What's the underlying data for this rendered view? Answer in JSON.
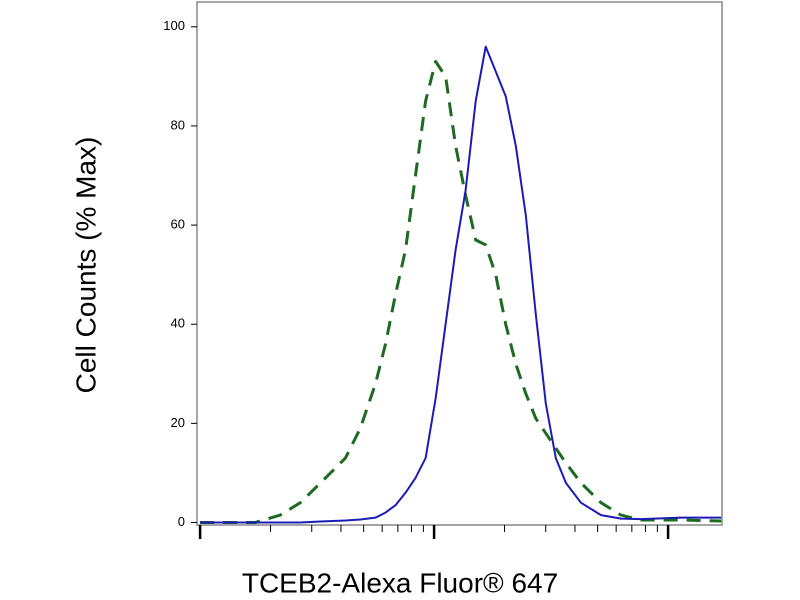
{
  "chart_data": {
    "type": "line",
    "xlabel": "TCEB2-Alexa Fluor® 647",
    "ylabel": "Cell Counts (% Max)",
    "x_log": true,
    "xlim": [
      97,
      17000
    ],
    "xticks": [
      100,
      200,
      300,
      400,
      500,
      600,
      700,
      800,
      900,
      1000,
      2000,
      3000,
      4000,
      5000,
      6000,
      7000,
      8000,
      9000,
      10000
    ],
    "ylim": [
      -0.5,
      105
    ],
    "yticks": [
      0,
      20,
      40,
      60,
      80,
      100
    ],
    "x": [
      100,
      172,
      220,
      268,
      327,
      418,
      484,
      562,
      620,
      684,
      755,
      833,
      920,
      1015,
      1120,
      1236,
      1364,
      1506,
      1662,
      1834,
      2024,
      2234,
      2466,
      2721,
      3003,
      3314,
      3658,
      4241,
      5167,
      6291,
      7663,
      11370,
      16870
    ],
    "series": [
      {
        "color": "#1f6a22",
        "dashed": true,
        "values": [
          0,
          0,
          1.5,
          4,
          8,
          13,
          19,
          28,
          36,
          46,
          55,
          70,
          85,
          93,
          90,
          76,
          66,
          57,
          56,
          50,
          40,
          32,
          26,
          21,
          18,
          15,
          12,
          8,
          4,
          1.5,
          0.5,
          0.5,
          0.3
        ]
      },
      {
        "color": "#1c1cb4",
        "dashed": false,
        "values": [
          0,
          0,
          0,
          0,
          0.2,
          0.4,
          0.6,
          1,
          2,
          3.5,
          6,
          9,
          13,
          25,
          40,
          55,
          67,
          85,
          96,
          91,
          86,
          76,
          62,
          42,
          24,
          13,
          8,
          4,
          1.5,
          0.8,
          0.7,
          1,
          1
        ]
      }
    ]
  }
}
